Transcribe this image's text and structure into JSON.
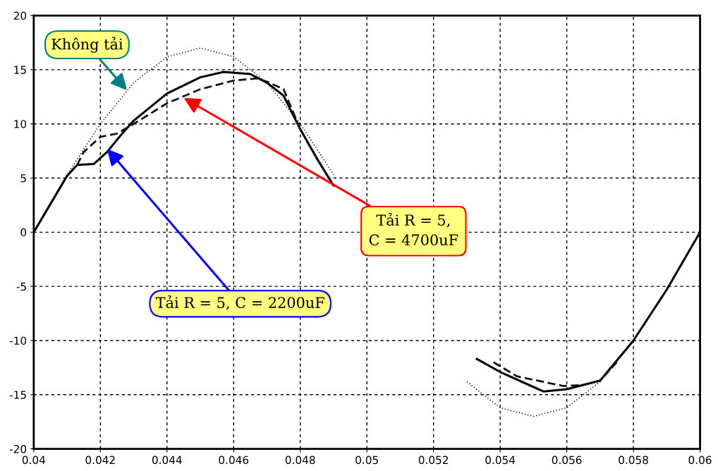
{
  "chart_data": {
    "type": "line",
    "xlim": [
      0.04,
      0.06
    ],
    "ylim": [
      -20,
      20
    ],
    "xticks": [
      0.04,
      0.042,
      0.044,
      0.046,
      0.048,
      0.05,
      0.052,
      0.054,
      0.056,
      0.058,
      0.06
    ],
    "yticks": [
      -20,
      -15,
      -10,
      -5,
      0,
      5,
      10,
      15,
      20
    ],
    "grid": true,
    "marker": "none",
    "series": [
      {
        "color": "#000000",
        "line_style": "dotted",
        "x": [
          0.04,
          0.041,
          0.042,
          0.043,
          0.044,
          0.045,
          0.046,
          0.047,
          0.048,
          0.049,
          0.0492,
          0.053,
          0.054,
          0.055,
          0.056,
          0.057,
          0.058,
          0.059,
          0.06
        ],
        "values": [
          0,
          5.3,
          10.0,
          13.8,
          16.2,
          17,
          16.2,
          13.8,
          10.0,
          5.3,
          null,
          -13.8,
          -16.2,
          -17,
          -16.2,
          -13.8,
          -10.0,
          -5.3,
          0
        ]
      },
      {
        "color": "#000000",
        "line_style": "solid",
        "x": [
          0.04,
          0.0405,
          0.041,
          0.0413,
          0.0418,
          0.0422,
          0.0426,
          0.043,
          0.044,
          0.045,
          0.0457,
          0.0465,
          0.047,
          0.0475,
          0.048,
          0.0485,
          0.049,
          0.0492,
          0.0533,
          0.054,
          0.0553,
          0.056,
          0.057,
          0.058,
          0.059,
          0.06
        ],
        "values": [
          0,
          2.6,
          5.2,
          6.2,
          6.3,
          7.4,
          8.9,
          10.3,
          12.8,
          14.3,
          14.8,
          14.6,
          13.8,
          12.6,
          9.5,
          6.8,
          4.3,
          null,
          -11.7,
          -12.9,
          -14.7,
          -14.5,
          -13.7,
          -10.0,
          -5.3,
          0
        ]
      },
      {
        "color": "#141414",
        "line_style": "dashed",
        "x": [
          0.0413,
          0.0415,
          0.042,
          0.0425,
          0.043,
          0.044,
          0.045,
          0.046,
          0.0467,
          0.047,
          0.0475,
          0.048,
          0.0485,
          0.049,
          0.0492,
          0.0538,
          0.0545,
          0.0559,
          0.0565,
          0.057,
          0.0575
        ],
        "values": [
          6.2,
          7.4,
          8.8,
          9.1,
          10.0,
          11.9,
          13.2,
          14.0,
          14.2,
          13.9,
          13.2,
          9.5,
          6.8,
          4.3,
          null,
          -12.0,
          -13.3,
          -14.2,
          -14.1,
          -13.7,
          -12.0
        ]
      }
    ],
    "annotations": [
      {
        "text": "Không tải",
        "x": 0.0428,
        "y": 13.1
      },
      {
        "text": "Tải R = 5,\nC = 4700uF",
        "x": 0.0445,
        "y": 12.4
      },
      {
        "text": "Tải R = 5, C = 2200uF",
        "x": 0.0422,
        "y": 7.7
      }
    ]
  }
}
